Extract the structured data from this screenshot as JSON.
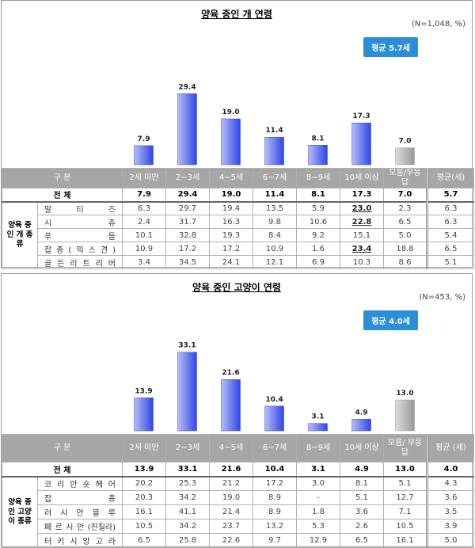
{
  "chart_data": [
    {
      "type": "bar",
      "title": "양육 중인 개 연령",
      "note": "(N=1,048, %)",
      "badge": "평균 5.7세",
      "categories": [
        "2세 미만",
        "2~3세",
        "4~5세",
        "6~7세",
        "8~9세",
        "10세 이상",
        "모름/무응답"
      ],
      "values": [
        7.9,
        29.4,
        19.0,
        11.4,
        8.1,
        17.3,
        7.0
      ],
      "value_labels": [
        "7.9",
        "29.4",
        "19.0",
        "11.4",
        "8.1",
        "17.3",
        "7.0"
      ],
      "colors": [
        "#2f45e6",
        "#2f45e6",
        "#2f45e6",
        "#2f45e6",
        "#2f45e6",
        "#2f45e6",
        "#9a9a9a"
      ],
      "table": {
        "header": [
          "구 분",
          "2세 미만",
          "2~3세",
          "4~5세",
          "6~7세",
          "8~9세",
          "10세 이상",
          "모름/무응답",
          "평균(세)"
        ],
        "total": {
          "label": "전 체",
          "cells": [
            "7.9",
            "29.4",
            "19.0",
            "11.4",
            "8.1",
            "17.3",
            "7.0",
            "5.7"
          ]
        },
        "group": "양육 중인 개 종류",
        "rows": [
          {
            "label": "말 티 즈",
            "cells": [
              "6.3",
              "29.7",
              "19.4",
              "13.5",
              "5.9",
              "23.0",
              "2.3",
              "6.3"
            ]
          },
          {
            "label": "시 츄",
            "cells": [
              "2.4",
              "31.7",
              "16.3",
              "9.8",
              "10.6",
              "22.8",
              "6.5",
              "6.3"
            ]
          },
          {
            "label": "푸 들",
            "cells": [
              "10.1",
              "32.8",
              "19.3",
              "8.4",
              "9.2",
              "15.1",
              "5.0",
              "5.4"
            ]
          },
          {
            "label": "잡 종 ( 믹 스 견 )",
            "cells": [
              "10.9",
              "17.2",
              "17.2",
              "10.9",
              "1.6",
              "23.4",
              "18.8",
              "6.5"
            ]
          },
          {
            "label": "골 든 리 트 리 버",
            "cells": [
              "3.4",
              "34.5",
              "24.1",
              "12.1",
              "6.9",
              "10.3",
              "8.6",
              "5.1"
            ]
          }
        ],
        "underline": [
          [
            0,
            5
          ],
          [
            1,
            5
          ],
          [
            3,
            5
          ]
        ]
      }
    },
    {
      "type": "bar",
      "title": "양육 중인 고양이 연령",
      "note": "(N=453, %)",
      "badge": "평균 4.0세",
      "categories": [
        "2세 미만",
        "2~3세",
        "4~5세",
        "6~7세",
        "8~9세",
        "10세 이상",
        "모름/무응답"
      ],
      "values": [
        13.9,
        33.1,
        21.6,
        10.4,
        3.1,
        4.9,
        13.0
      ],
      "value_labels": [
        "13.9",
        "33.1",
        "21.6",
        "10.4",
        "3.1",
        "4.9",
        "13.0"
      ],
      "colors": [
        "#2f45e6",
        "#2f45e6",
        "#2f45e6",
        "#2f45e6",
        "#2f45e6",
        "#2f45e6",
        "#9a9a9a"
      ],
      "table": {
        "header": [
          "구 분",
          "2세 미만",
          "2~3세",
          "4~5세",
          "6~7세",
          "8~9세",
          "10세 이상",
          "모름/ 무응답",
          "평균 (세)"
        ],
        "total": {
          "label": "전 체",
          "cells": [
            "13.9",
            "33.1",
            "21.6",
            "10.4",
            "3.1",
            "4.9",
            "13.0",
            "4.0"
          ]
        },
        "group": "양육 중인 고양이 종류",
        "rows": [
          {
            "label": "코 리 안 숏 헤 어",
            "cells": [
              "20.2",
              "25.3",
              "21.2",
              "17.2",
              "3.0",
              "8.1",
              "5.1",
              "4.3"
            ]
          },
          {
            "label": "잡 종",
            "cells": [
              "20.3",
              "34.2",
              "19.0",
              "8.9",
              "-",
              "5.1",
              "12.7",
              "3.6"
            ]
          },
          {
            "label": "러 시 안 블 루",
            "cells": [
              "16.1",
              "41.1",
              "21.4",
              "8.9",
              "1.8",
              "3.6",
              "7.1",
              "3.5"
            ]
          },
          {
            "label": "페 르 시 안 (친칠라)",
            "cells": [
              "10.5",
              "34.2",
              "23.7",
              "13.2",
              "5.3",
              "2.6",
              "10.5",
              "3.9"
            ]
          },
          {
            "label": "터 키 시 앙 고 라",
            "cells": [
              "6.5",
              "25.8",
              "22.6",
              "9.7",
              "12.9",
              "6.5",
              "16.1",
              "5.0"
            ]
          }
        ],
        "underline": []
      }
    }
  ]
}
